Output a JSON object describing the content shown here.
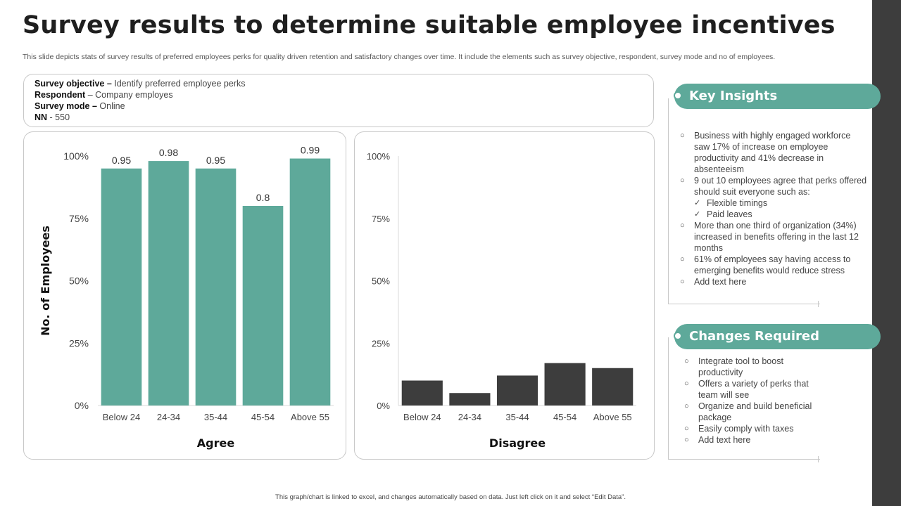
{
  "title": "Survey results to determine suitable employee incentives",
  "subtitle": "This slide depicts stats of survey results of preferred employees perks for quality driven retention and satisfactory changes over time. It include the elements such as survey objective, respondent, survey mode and no of employees.",
  "survey": {
    "objective_label": "Survey objective –",
    "objective_value": " Identify preferred  employee perks",
    "respondent_label": "Respondent",
    "respondent_value": " – Company employes",
    "mode_label": "Survey mode –",
    "mode_value": " Online",
    "nn_label": "NN",
    "nn_value": " - 550"
  },
  "chart_data": [
    {
      "type": "bar",
      "title": "Agree",
      "ylabel": "No. of Employees",
      "categories": [
        "Below 24",
        "24-34",
        "35-44",
        "45-54",
        "Above 55"
      ],
      "values": [
        0.95,
        0.98,
        0.95,
        0.8,
        0.99
      ],
      "value_labels": [
        "0.95",
        "0.98",
        "0.95",
        "0.8",
        "0.99"
      ],
      "yticks": [
        "0%",
        "25%",
        "50%",
        "75%",
        "100%"
      ],
      "ylim": [
        0,
        1
      ],
      "color": "#5ea99a",
      "grid": false
    },
    {
      "type": "bar",
      "title": "Disagree",
      "categories": [
        "Below 24",
        "24-34",
        "35-44",
        "45-54",
        "Above 55"
      ],
      "values": [
        0.1,
        0.05,
        0.12,
        0.17,
        0.15
      ],
      "yticks": [
        "0%",
        "25%",
        "50%",
        "75%",
        "100%"
      ],
      "ylim": [
        0,
        1
      ],
      "color": "#3d3d3d",
      "grid": false
    }
  ],
  "key_insights": {
    "heading": "Key Insights",
    "items": [
      {
        "level": 1,
        "text": "Business with highly engaged workforce saw 17% of increase on employee productivity and 41% decrease in absenteeism"
      },
      {
        "level": 1,
        "text": "9 out 10 employees agree that perks offered  should suit everyone  such as:"
      },
      {
        "level": 2,
        "text": "Flexible timings"
      },
      {
        "level": 2,
        "text": "Paid leaves"
      },
      {
        "level": 1,
        "text": "More than one third of organization (34%) increased in benefits offering  in the last 12 months"
      },
      {
        "level": 1,
        "text": "61% of employees say having access to emerging benefits would reduce stress"
      },
      {
        "level": 1,
        "text": "Add text here"
      }
    ]
  },
  "changes_required": {
    "heading": "Changes Required",
    "items": [
      {
        "level": 1,
        "text": "Integrate tool to boost productivity"
      },
      {
        "level": 1,
        "text": "Offers  a variety  of perks that team will see"
      },
      {
        "level": 1,
        "text": "Organize and build beneficial package"
      },
      {
        "level": 1,
        "text": "Easily comply with taxes"
      },
      {
        "level": 1,
        "text": "Add text here"
      }
    ]
  },
  "footer": "This graph/chart is linked to excel, and changes automatically based on data. Just left click on it and select “Edit Data”.",
  "colors": {
    "accent": "#5ea99a",
    "dark": "#3d3d3d"
  }
}
